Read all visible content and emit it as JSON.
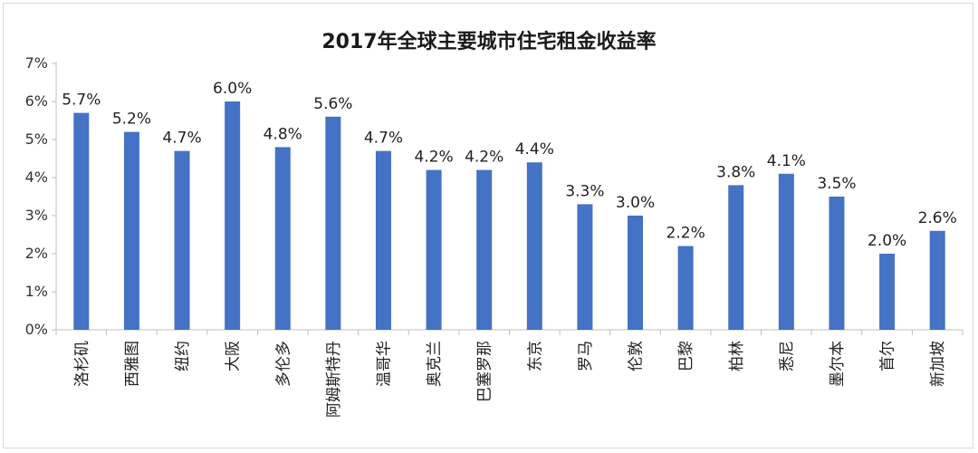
{
  "chart_data": {
    "type": "bar",
    "title": "2017年全球主要城市住宅租金收益率",
    "xlabel": "",
    "ylabel": "",
    "ylim": [
      0,
      7
    ],
    "yticks": [
      "0%",
      "1%",
      "2%",
      "3%",
      "4%",
      "5%",
      "6%",
      "7%"
    ],
    "categories": [
      "洛杉矶",
      "西雅图",
      "纽约",
      "大阪",
      "多伦多",
      "阿姆斯特丹",
      "温哥华",
      "奥克兰",
      "巴塞罗那",
      "东京",
      "罗马",
      "伦敦",
      "巴黎",
      "柏林",
      "悉尼",
      "墨尔本",
      "首尔",
      "新加坡"
    ],
    "values": [
      5.7,
      5.2,
      4.7,
      6.0,
      4.8,
      5.6,
      4.7,
      4.2,
      4.2,
      4.4,
      3.3,
      3.0,
      2.2,
      3.8,
      4.1,
      3.5,
      2.0,
      2.6
    ],
    "data_labels": [
      "5.7%",
      "5.2%",
      "4.7%",
      "6.0%",
      "4.8%",
      "5.6%",
      "4.7%",
      "4.2%",
      "4.2%",
      "4.4%",
      "3.3%",
      "3.0%",
      "2.2%",
      "3.8%",
      "4.1%",
      "3.5%",
      "2.0%",
      "2.6%"
    ],
    "grid": false,
    "legend": "none",
    "bar_color": "#4472c4"
  }
}
